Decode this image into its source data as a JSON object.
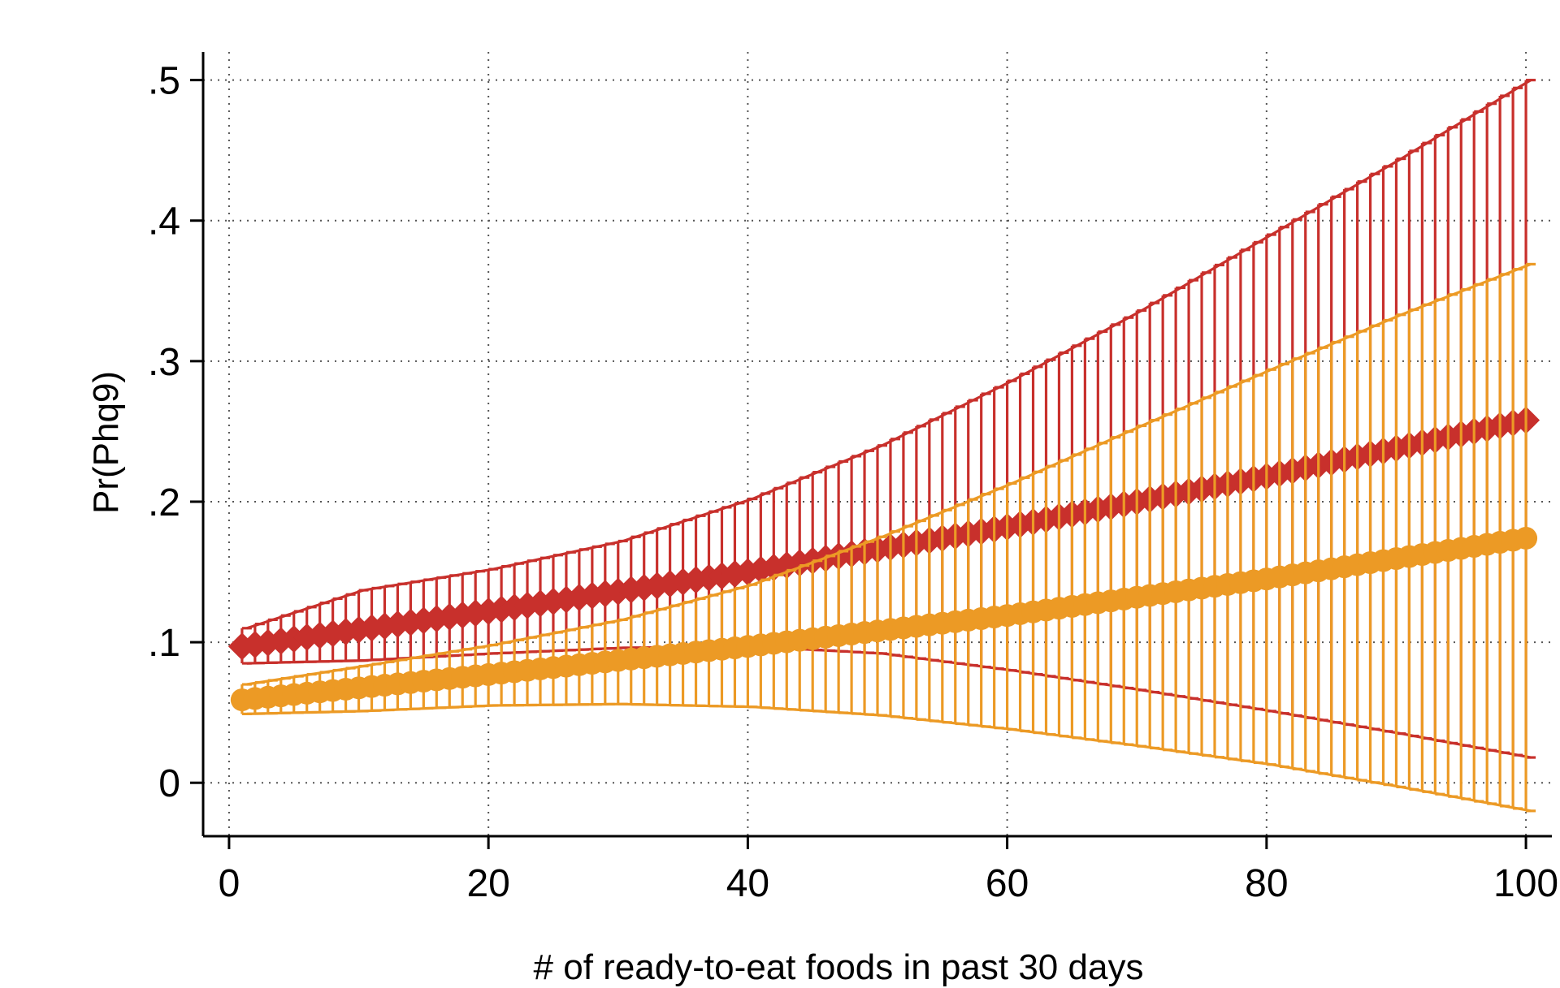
{
  "chart_data": {
    "type": "scatter",
    "title": "",
    "xlabel": "# of ready-to-eat foods in past 30 days",
    "ylabel": "Pr(Phq9)",
    "xlim": [
      -2,
      102
    ],
    "ylim": [
      -0.038,
      0.52
    ],
    "x_ticks": [
      0,
      20,
      40,
      60,
      80,
      100
    ],
    "x_tick_labels": [
      "0",
      "20",
      "40",
      "60",
      "80",
      "100"
    ],
    "y_ticks": [
      0,
      0.1,
      0.2,
      0.3,
      0.4,
      0.5
    ],
    "y_tick_labels": [
      "0",
      ".1",
      ".2",
      ".3",
      ".4",
      ".5"
    ],
    "grid": true,
    "grid_style": "dotted",
    "legend": "none",
    "x": {
      "start": 1,
      "end": 100,
      "step": 1
    },
    "series": [
      {
        "marker": "diamond",
        "color": "#c8302c",
        "estimate": {
          "x": [
            1,
            20,
            40,
            60,
            80,
            100
          ],
          "y": [
            0.097,
            0.122,
            0.15,
            0.182,
            0.218,
            0.258
          ]
        },
        "ci_upper": {
          "x": [
            1,
            10,
            20,
            30,
            40,
            50,
            60,
            70,
            80,
            90,
            100
          ],
          "y": [
            0.11,
            0.137,
            0.152,
            0.172,
            0.202,
            0.24,
            0.286,
            0.336,
            0.39,
            0.444,
            0.5
          ]
        },
        "ci_lower": {
          "x": [
            1,
            10,
            20,
            30,
            40,
            50,
            60,
            70,
            80,
            90,
            100
          ],
          "y": [
            0.085,
            0.087,
            0.092,
            0.096,
            0.097,
            0.092,
            0.08,
            0.066,
            0.051,
            0.035,
            0.018
          ]
        }
      },
      {
        "marker": "circle",
        "color": "#ec9a25",
        "estimate": {
          "x": [
            1,
            20,
            40,
            60,
            80,
            100
          ],
          "y": [
            0.059,
            0.077,
            0.097,
            0.119,
            0.145,
            0.174
          ]
        },
        "ci_upper": {
          "x": [
            1,
            10,
            20,
            30,
            40,
            50,
            60,
            70,
            80,
            90,
            100
          ],
          "y": [
            0.07,
            0.083,
            0.098,
            0.116,
            0.141,
            0.175,
            0.213,
            0.254,
            0.294,
            0.333,
            0.369
          ]
        },
        "ci_lower": {
          "x": [
            1,
            10,
            20,
            30,
            40,
            50,
            60,
            70,
            80,
            90,
            100
          ],
          "y": [
            0.049,
            0.051,
            0.055,
            0.056,
            0.054,
            0.048,
            0.038,
            0.026,
            0.013,
            -0.003,
            -0.02
          ]
        }
      }
    ]
  }
}
